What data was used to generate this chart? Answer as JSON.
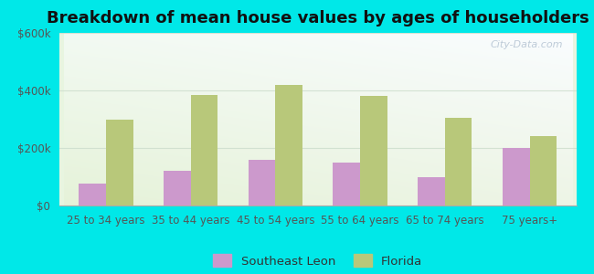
{
  "title": "Breakdown of mean house values by ages of householders",
  "categories": [
    "25 to 34 years",
    "35 to 44 years",
    "45 to 54 years",
    "55 to 64 years",
    "65 to 74 years",
    "75 years+"
  ],
  "southeast_leon": [
    75000,
    120000,
    160000,
    150000,
    100000,
    200000
  ],
  "florida": [
    300000,
    385000,
    420000,
    380000,
    305000,
    240000
  ],
  "southeast_leon_color": "#cc99cc",
  "florida_color": "#b8c87a",
  "background_outer": "#00e8e8",
  "ylim": [
    0,
    600000
  ],
  "yticks": [
    0,
    200000,
    400000,
    600000
  ],
  "legend_southeast": "Southeast Leon",
  "legend_florida": "Florida",
  "watermark": "City-Data.com",
  "title_fontsize": 13,
  "tick_fontsize": 8.5,
  "legend_fontsize": 9.5
}
